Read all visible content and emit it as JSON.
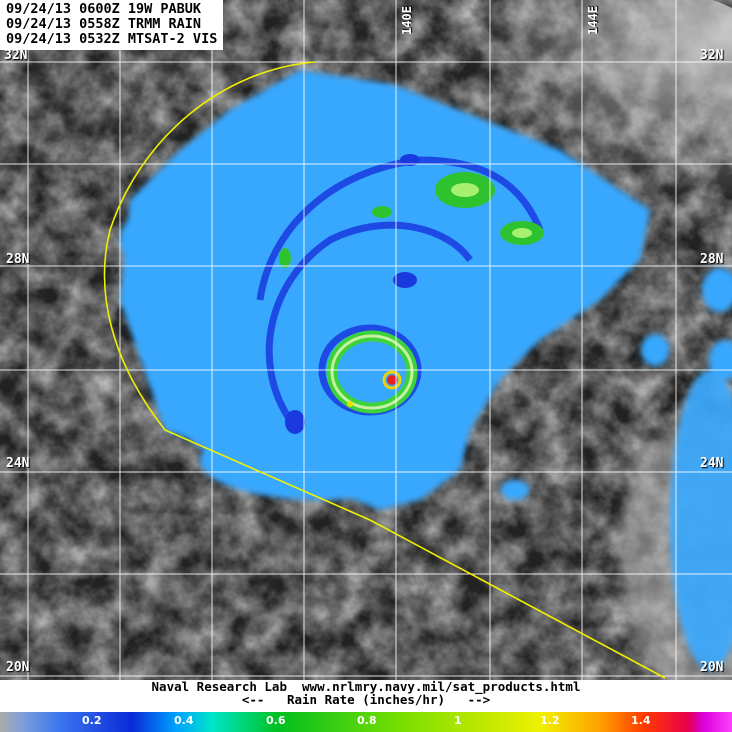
{
  "header": {
    "line1": "09/24/13 0600Z 19W PABUK",
    "line2": "09/24/13 0558Z TRMM RAIN",
    "line3": "09/24/13 0532Z MTSAT-2 VIS"
  },
  "grid": {
    "lat_labels": [
      "32N",
      "28N",
      "24N",
      "20N"
    ],
    "lon_labels": [
      "140E",
      "144E"
    ]
  },
  "footer": {
    "credit_line1": "Naval Research Lab  www.nrlmry.navy.mil/sat_products.html",
    "credit_line2": "<--   Rain Rate (inches/hr)   -->"
  },
  "colorbar": {
    "ticks": [
      "0.2",
      "0.4",
      "0.6",
      "0.8",
      "1",
      "1.2",
      "1.4"
    ]
  },
  "colors": {
    "swath_edge": "#f0f000",
    "rain_base": "#38a8ff",
    "grid": "#ffffff"
  }
}
